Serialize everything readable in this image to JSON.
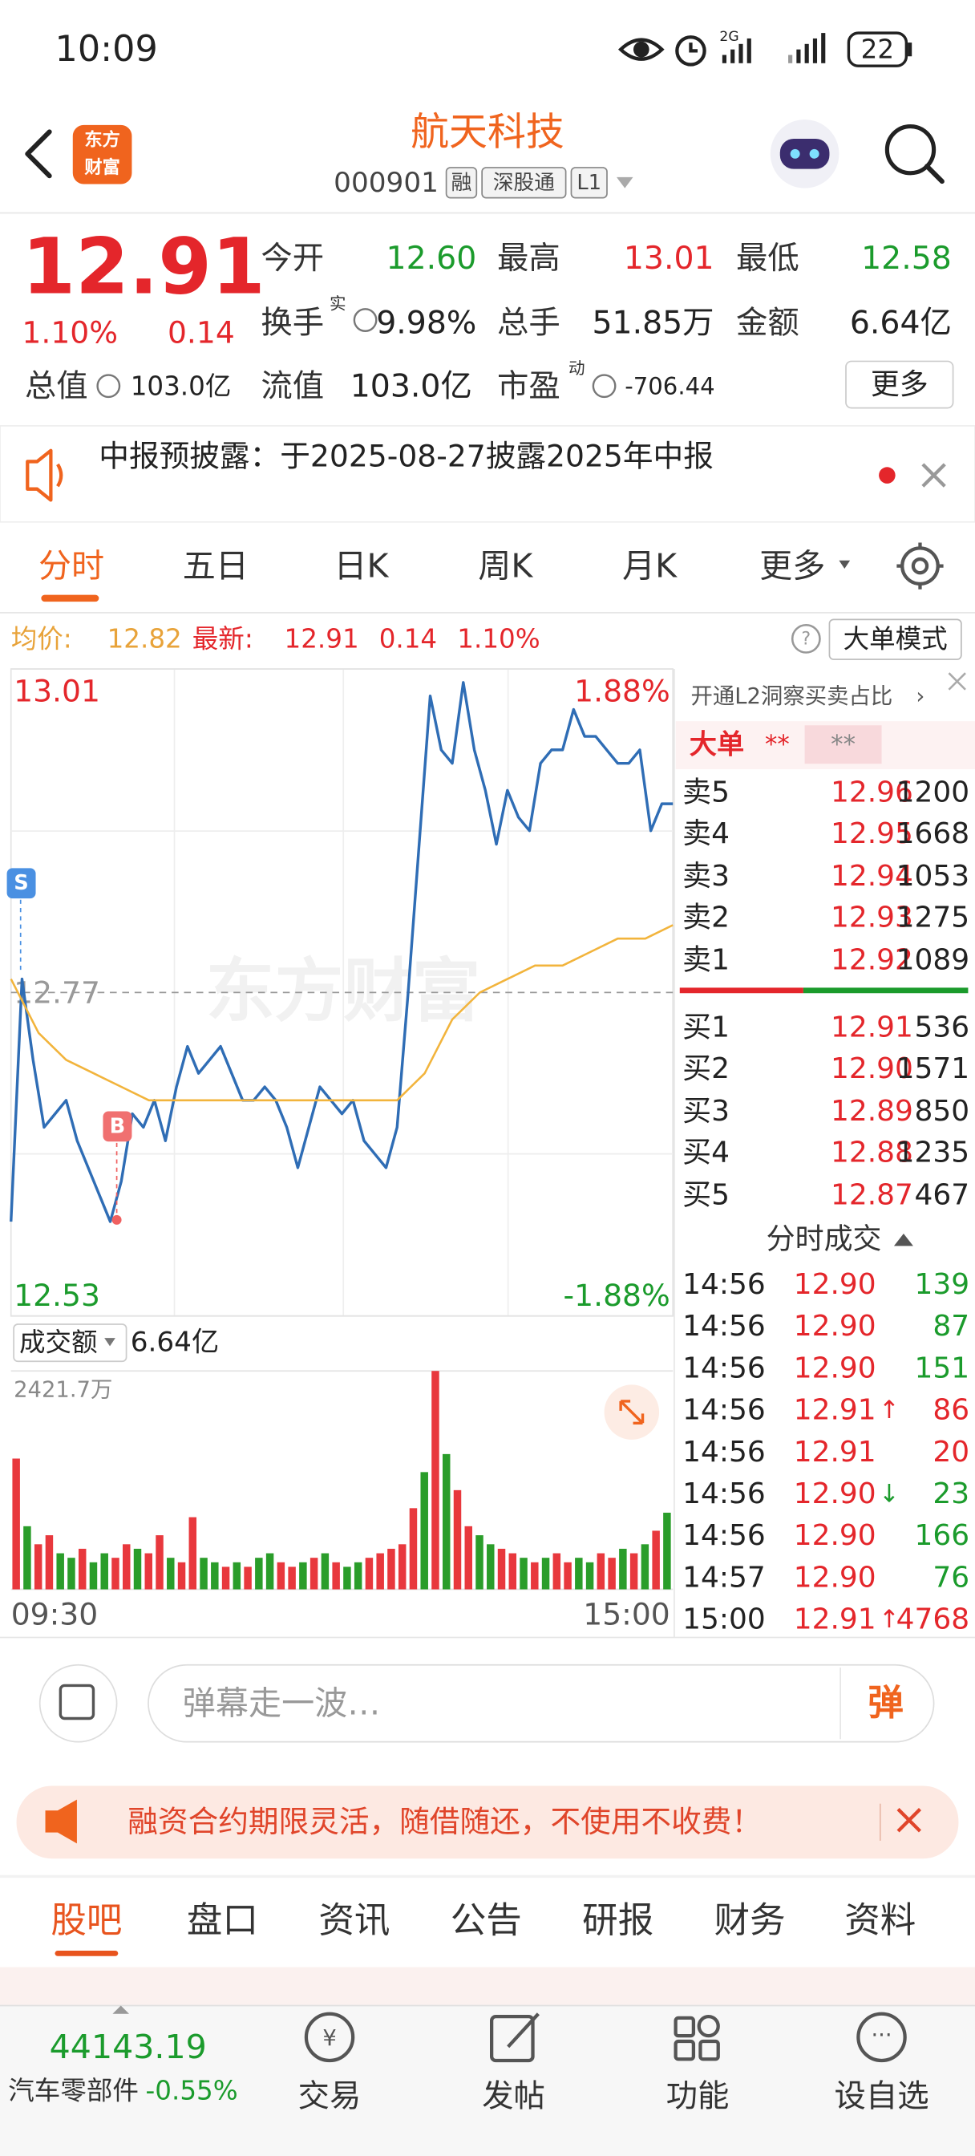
{
  "status_bar": {
    "time": "10:09",
    "signal": "2G",
    "battery": "22"
  },
  "header": {
    "logo_top": "东方",
    "logo_bottom": "财富",
    "title": "航天科技",
    "code": "000901",
    "badges": [
      "融",
      "深股通",
      "L1"
    ]
  },
  "quote": {
    "price": "12.91",
    "change_pct": "1.10%",
    "change": "0.14",
    "rows": [
      [
        {
          "label": "今开",
          "value": "12.60",
          "color": "#1b9b2c"
        },
        {
          "label": "最高",
          "value": "13.01",
          "color": "#e4262b"
        },
        {
          "label": "最低",
          "value": "12.58",
          "color": "#1b9b2c"
        }
      ],
      [
        {
          "label": "换手",
          "sup": "实",
          "value": "9.98%",
          "color": "#222222"
        },
        {
          "label": "总手",
          "value": "51.85万",
          "color": "#222222"
        },
        {
          "label": "金额",
          "value": "6.64亿",
          "color": "#222222"
        }
      ],
      [
        {
          "label": "总值",
          "value": "103.0亿",
          "color": "#222222"
        },
        {
          "label": "流值",
          "value": "103.0亿",
          "color": "#222222"
        },
        {
          "label": "市盈",
          "sup": "动",
          "value": "-706.44",
          "color": "#222222"
        }
      ]
    ],
    "more": "更多"
  },
  "notice": {
    "text": "中报预披露：于2025-08-27披露2025年中报"
  },
  "tabs": [
    "分时",
    "五日",
    "日K",
    "周K",
    "月K",
    "更多"
  ],
  "info_bar": {
    "avg_label": "均价:",
    "avg": "12.82",
    "last_label": "最新:",
    "last": "12.91",
    "change": "0.14",
    "change_pct": "1.10%",
    "mode": "大单模式"
  },
  "chart_data": [
    {
      "type": "line",
      "watermark": "东方财富",
      "markers": [
        "S",
        "B"
      ],
      "ylim": [
        12.53,
        13.01
      ],
      "yticks": [
        13.01,
        12.77,
        12.53
      ],
      "y2lim": [
        -1.88,
        1.88
      ],
      "y2ticks": [
        {
          "value": 1.88,
          "label": "1.88%"
        },
        {
          "value": -1.88,
          "label": "-1.88%"
        }
      ],
      "series": [
        {
          "color": "#2f6db5",
          "values": [
            12.6,
            12.78,
            12.72,
            12.67,
            12.68,
            12.69,
            12.66,
            12.64,
            12.62,
            12.6,
            12.63,
            12.68,
            12.67,
            12.69,
            12.66,
            12.7,
            12.73,
            12.71,
            12.72,
            12.73,
            12.71,
            12.69,
            12.69,
            12.7,
            12.69,
            12.67,
            12.64,
            12.67,
            12.7,
            12.69,
            12.68,
            12.69,
            12.66,
            12.65,
            12.64,
            12.67,
            12.77,
            12.88,
            12.99,
            12.95,
            12.94,
            13.0,
            12.95,
            12.92,
            12.88,
            12.92,
            12.9,
            12.89,
            12.94,
            12.95,
            12.95,
            12.98,
            12.96,
            12.96,
            12.95,
            12.94,
            12.94,
            12.95,
            12.89,
            12.91,
            12.91
          ]
        },
        {
          "color": "#f2b43c",
          "values": [
            12.78,
            12.74,
            12.72,
            12.71,
            12.7,
            12.69,
            12.69,
            12.69,
            12.69,
            12.69,
            12.69,
            12.69,
            12.69,
            12.69,
            12.69,
            12.71,
            12.75,
            12.77,
            12.78,
            12.79,
            12.79,
            12.8,
            12.81,
            12.81,
            12.82
          ]
        }
      ]
    },
    {
      "type": "bar",
      "title": "成交额",
      "total": "6.64亿",
      "ylim": [
        0,
        2421.7
      ],
      "yticks": [
        {
          "value": 2421.7,
          "label": "2421.7万"
        }
      ],
      "x_labels": [
        "09:30",
        "15:00"
      ],
      "values": [
        1450,
        700,
        500,
        600,
        400,
        350,
        450,
        300,
        400,
        350,
        500,
        450,
        400,
        600,
        350,
        300,
        800,
        350,
        300,
        250,
        300,
        250,
        350,
        400,
        300,
        250,
        300,
        350,
        400,
        300,
        250,
        300,
        350,
        400,
        450,
        500,
        900,
        1300,
        2421.7,
        1500,
        1100,
        700,
        600,
        500,
        450,
        400,
        350,
        300,
        350,
        400,
        300,
        350,
        300,
        400,
        350,
        450,
        400,
        500,
        650,
        850
      ],
      "colors": [
        "#e8383d",
        "#2a9d2a",
        "#e8383d",
        "#e8383d",
        "#2a9d2a",
        "#2a9d2a",
        "#e8383d",
        "#2a9d2a",
        "#2a9d2a",
        "#e8383d",
        "#e8383d",
        "#2a9d2a",
        "#e8383d",
        "#e8383d",
        "#2a9d2a",
        "#e8383d",
        "#e8383d",
        "#2a9d2a",
        "#2a9d2a",
        "#e8383d",
        "#2a9d2a",
        "#e8383d",
        "#2a9d2a",
        "#2a9d2a",
        "#e8383d",
        "#e8383d",
        "#2a9d2a",
        "#e8383d",
        "#2a9d2a",
        "#e8383d",
        "#2a9d2a",
        "#2a9d2a",
        "#e8383d",
        "#e8383d",
        "#e8383d",
        "#e8383d",
        "#e8383d",
        "#2a9d2a",
        "#e8383d",
        "#2a9d2a",
        "#e8383d",
        "#e8383d",
        "#2a9d2a",
        "#2a9d2a",
        "#e8383d",
        "#e8383d",
        "#2a9d2a",
        "#e8383d",
        "#2a9d2a",
        "#e8383d",
        "#e8383d",
        "#2a9d2a",
        "#2a9d2a",
        "#e8383d",
        "#e8383d",
        "#2a9d2a",
        "#e8383d",
        "#2a9d2a",
        "#e8383d",
        "#2a9d2a"
      ]
    }
  ],
  "order_book": {
    "promo": "开通L2洞察买卖占比",
    "big_order": "大单",
    "masked": [
      "**",
      "**"
    ],
    "asks": [
      [
        "卖5",
        "12.96",
        "1200"
      ],
      [
        "卖4",
        "12.95",
        "1668"
      ],
      [
        "卖3",
        "12.94",
        "1053"
      ],
      [
        "卖2",
        "12.93",
        "1275"
      ],
      [
        "卖1",
        "12.92",
        "1089"
      ]
    ],
    "bids": [
      [
        "买1",
        "12.91",
        "536"
      ],
      [
        "买2",
        "12.90",
        "1571"
      ],
      [
        "买3",
        "12.89",
        "850"
      ],
      [
        "买4",
        "12.88",
        "1235"
      ],
      [
        "买5",
        "12.87",
        "467"
      ]
    ]
  },
  "trades": {
    "title": "分时成交",
    "rows": [
      {
        "time": "14:56",
        "price": "12.90",
        "volume": "139",
        "color": "#1b9b2c"
      },
      {
        "time": "14:56",
        "price": "12.90",
        "volume": "87",
        "color": "#1b9b2c"
      },
      {
        "time": "14:56",
        "price": "12.90",
        "volume": "151",
        "color": "#1b9b2c"
      },
      {
        "time": "14:56",
        "price": "12.91",
        "arrow": "↑",
        "volume": "86",
        "color": "#e4262b"
      },
      {
        "time": "14:56",
        "price": "12.91",
        "volume": "20",
        "color": "#e4262b"
      },
      {
        "time": "14:56",
        "price": "12.90",
        "arrow": "↓",
        "volume": "23",
        "color": "#1b9b2c"
      },
      {
        "time": "14:56",
        "price": "12.90",
        "volume": "166",
        "color": "#1b9b2c"
      },
      {
        "time": "14:57",
        "price": "12.90",
        "volume": "76",
        "color": "#1b9b2c"
      },
      {
        "time": "15:00",
        "price": "12.91",
        "arrow": "↑",
        "volume": "4768",
        "color": "#e4262b"
      }
    ]
  },
  "comment_bar": {
    "placeholder": "弹幕走一波…",
    "button": "弹"
  },
  "ad": {
    "text": "融资合约期限灵活，随借随还，不使用不收费！"
  },
  "sub_tabs": [
    "股吧",
    "盘口",
    "资讯",
    "公告",
    "研报",
    "财务",
    "资料"
  ],
  "bottom_nav": {
    "index_value": "44143.19",
    "sector": "汽车零部件",
    "sector_change": "-0.55%",
    "items": [
      "交易",
      "发帖",
      "功能",
      "设自选"
    ]
  }
}
